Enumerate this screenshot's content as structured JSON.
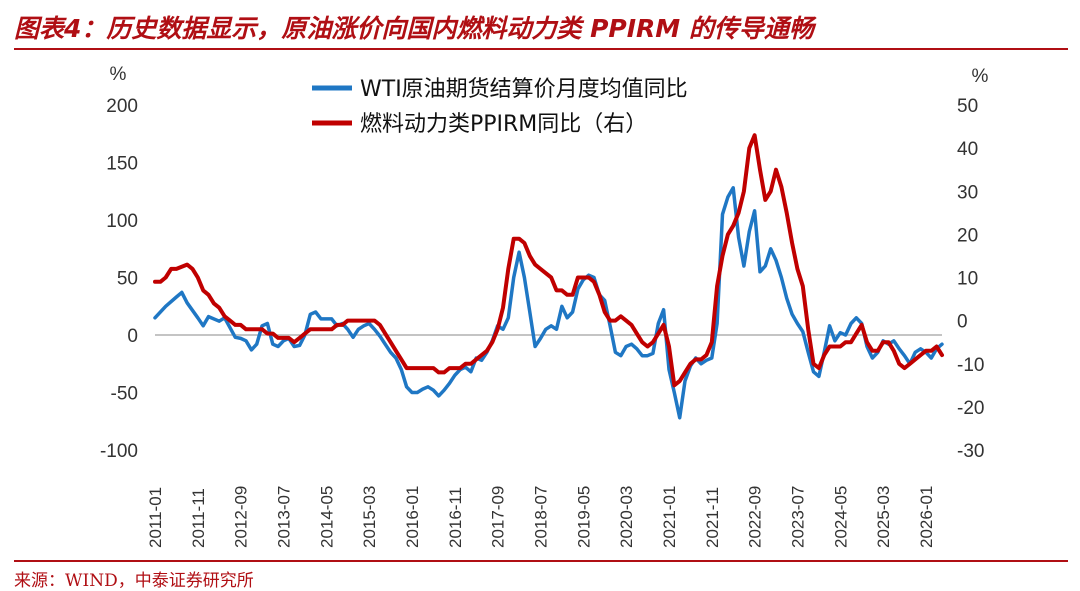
{
  "header": {
    "title": "图表4：历史数据显示，原油涨价向国内燃料动力类 PPIRM 的传导通畅"
  },
  "footer": {
    "source": "来源：WIND，中泰证券研究所"
  },
  "colors": {
    "accent": "#b00f14",
    "series_blue": "#1f77c4",
    "series_red": "#c00000"
  },
  "chart_data": {
    "type": "line",
    "title": "",
    "xlabel": "",
    "ylabel_left": "%",
    "ylabel_right": "%",
    "ylim_left": [
      -100,
      200
    ],
    "ylim_right": [
      -30,
      50
    ],
    "yticks_left": [
      "200",
      "150",
      "100",
      "50",
      "0",
      "-50",
      "-100"
    ],
    "yticks_right": [
      "50",
      "40",
      "30",
      "20",
      "10",
      "0",
      "-10",
      "-20",
      "-30"
    ],
    "x_tick_labels": [
      "2011-01",
      "2011-11",
      "2012-09",
      "2013-07",
      "2014-05",
      "2015-03",
      "2016-01",
      "2016-11",
      "2017-09",
      "2018-07",
      "2019-05",
      "2020-03",
      "2021-01",
      "2021-11",
      "2022-09",
      "2023-07",
      "2024-05",
      "2025-03",
      "2026-01"
    ],
    "legend": [
      "WTI原油期货结算价月度均值同比",
      "燃料动力类PPIRM同比（右）"
    ],
    "series": [
      {
        "name": "WTI原油期货结算价月度均值同比",
        "axis": "left",
        "points": [
          [
            0,
            15
          ],
          [
            2,
            25
          ],
          [
            4,
            33
          ],
          [
            5,
            37
          ],
          [
            6,
            28
          ],
          [
            8,
            15
          ],
          [
            9,
            8
          ],
          [
            10,
            16
          ],
          [
            12,
            12
          ],
          [
            13,
            15
          ],
          [
            15,
            -2
          ],
          [
            16,
            -3
          ],
          [
            17,
            -5
          ],
          [
            18,
            -13
          ],
          [
            19,
            -8
          ],
          [
            20,
            8
          ],
          [
            21,
            10
          ],
          [
            22,
            -8
          ],
          [
            23,
            -10
          ],
          [
            24,
            -5
          ],
          [
            25,
            -3
          ],
          [
            26,
            -10
          ],
          [
            27,
            -9
          ],
          [
            28,
            0
          ],
          [
            29,
            18
          ],
          [
            30,
            20
          ],
          [
            31,
            14
          ],
          [
            33,
            14
          ],
          [
            34,
            8
          ],
          [
            35,
            10
          ],
          [
            36,
            5
          ],
          [
            37,
            -2
          ],
          [
            38,
            5
          ],
          [
            39,
            8
          ],
          [
            40,
            10
          ],
          [
            41,
            5
          ],
          [
            42,
            -1
          ],
          [
            43,
            -8
          ],
          [
            44,
            -15
          ],
          [
            45,
            -20
          ],
          [
            46,
            -30
          ],
          [
            47,
            -45
          ],
          [
            48,
            -50
          ],
          [
            49,
            -50
          ],
          [
            50,
            -47
          ],
          [
            51,
            -45
          ],
          [
            52,
            -48
          ],
          [
            53,
            -53
          ],
          [
            54,
            -48
          ],
          [
            55,
            -42
          ],
          [
            56,
            -35
          ],
          [
            57,
            -30
          ],
          [
            58,
            -28
          ],
          [
            59,
            -32
          ],
          [
            60,
            -20
          ],
          [
            61,
            -22
          ],
          [
            62,
            -15
          ],
          [
            63,
            -5
          ],
          [
            64,
            8
          ],
          [
            65,
            5
          ],
          [
            66,
            15
          ],
          [
            67,
            50
          ],
          [
            68,
            72
          ],
          [
            69,
            50
          ],
          [
            70,
            20
          ],
          [
            71,
            -10
          ],
          [
            72,
            -3
          ],
          [
            73,
            5
          ],
          [
            74,
            8
          ],
          [
            75,
            5
          ],
          [
            76,
            25
          ],
          [
            77,
            15
          ],
          [
            78,
            20
          ],
          [
            79,
            40
          ],
          [
            80,
            48
          ],
          [
            81,
            52
          ],
          [
            82,
            50
          ],
          [
            83,
            35
          ],
          [
            84,
            30
          ],
          [
            85,
            8
          ],
          [
            86,
            -15
          ],
          [
            87,
            -18
          ],
          [
            88,
            -10
          ],
          [
            89,
            -8
          ],
          [
            90,
            -12
          ],
          [
            91,
            -18
          ],
          [
            92,
            -18
          ],
          [
            93,
            -16
          ],
          [
            94,
            10
          ],
          [
            95,
            22
          ],
          [
            96,
            -30
          ],
          [
            97,
            -50
          ],
          [
            98,
            -72
          ],
          [
            99,
            -40
          ],
          [
            100,
            -27
          ],
          [
            101,
            -20
          ],
          [
            102,
            -25
          ],
          [
            103,
            -22
          ],
          [
            104,
            -20
          ],
          [
            105,
            10
          ],
          [
            106,
            105
          ],
          [
            107,
            120
          ],
          [
            108,
            128
          ],
          [
            109,
            85
          ],
          [
            110,
            60
          ],
          [
            111,
            90
          ],
          [
            112,
            108
          ],
          [
            113,
            55
          ],
          [
            114,
            60
          ],
          [
            115,
            75
          ],
          [
            116,
            65
          ],
          [
            117,
            50
          ],
          [
            118,
            32
          ],
          [
            119,
            18
          ],
          [
            120,
            10
          ],
          [
            121,
            3
          ],
          [
            122,
            -15
          ],
          [
            123,
            -32
          ],
          [
            124,
            -36
          ],
          [
            125,
            -15
          ],
          [
            126,
            8
          ],
          [
            127,
            -5
          ],
          [
            128,
            2
          ],
          [
            129,
            0
          ],
          [
            130,
            10
          ],
          [
            131,
            15
          ],
          [
            132,
            10
          ],
          [
            133,
            -10
          ],
          [
            134,
            -20
          ],
          [
            135,
            -15
          ],
          [
            136,
            -5
          ],
          [
            137,
            -8
          ],
          [
            138,
            -5
          ],
          [
            139,
            -12
          ],
          [
            140,
            -18
          ],
          [
            141,
            -25
          ],
          [
            142,
            -15
          ],
          [
            143,
            -12
          ],
          [
            144,
            -15
          ],
          [
            145,
            -20
          ],
          [
            146,
            -12
          ],
          [
            147,
            -8
          ]
        ]
      },
      {
        "name": "燃料动力类PPIRM同比（右）",
        "axis": "right",
        "points": [
          [
            0,
            9
          ],
          [
            1,
            9
          ],
          [
            2,
            10
          ],
          [
            3,
            12
          ],
          [
            4,
            12
          ],
          [
            6,
            13
          ],
          [
            7,
            12
          ],
          [
            8,
            10
          ],
          [
            9,
            7
          ],
          [
            10,
            6
          ],
          [
            11,
            4
          ],
          [
            12,
            3
          ],
          [
            13,
            1
          ],
          [
            14,
            0
          ],
          [
            15,
            -1
          ],
          [
            16,
            -1
          ],
          [
            17,
            -2
          ],
          [
            18,
            -2
          ],
          [
            19,
            -2
          ],
          [
            20,
            -2
          ],
          [
            21,
            -3
          ],
          [
            22,
            -3
          ],
          [
            23,
            -4
          ],
          [
            24,
            -4
          ],
          [
            25,
            -4
          ],
          [
            26,
            -5
          ],
          [
            27,
            -4
          ],
          [
            28,
            -3
          ],
          [
            29,
            -2
          ],
          [
            30,
            -2
          ],
          [
            31,
            -2
          ],
          [
            32,
            -2
          ],
          [
            33,
            -2
          ],
          [
            34,
            -1
          ],
          [
            35,
            -1
          ],
          [
            36,
            0
          ],
          [
            37,
            0
          ],
          [
            38,
            0
          ],
          [
            39,
            0
          ],
          [
            40,
            0
          ],
          [
            41,
            0
          ],
          [
            42,
            -1
          ],
          [
            43,
            -3
          ],
          [
            44,
            -5
          ],
          [
            45,
            -7
          ],
          [
            46,
            -9
          ],
          [
            47,
            -11
          ],
          [
            48,
            -11
          ],
          [
            49,
            -11
          ],
          [
            50,
            -11
          ],
          [
            51,
            -11
          ],
          [
            52,
            -11
          ],
          [
            53,
            -12
          ],
          [
            54,
            -12
          ],
          [
            55,
            -11
          ],
          [
            56,
            -11
          ],
          [
            57,
            -11
          ],
          [
            58,
            -10
          ],
          [
            59,
            -10
          ],
          [
            60,
            -9
          ],
          [
            61,
            -8
          ],
          [
            62,
            -7
          ],
          [
            63,
            -5
          ],
          [
            64,
            -2
          ],
          [
            65,
            3
          ],
          [
            66,
            12
          ],
          [
            67,
            19
          ],
          [
            68,
            19
          ],
          [
            69,
            18
          ],
          [
            70,
            15
          ],
          [
            71,
            13
          ],
          [
            72,
            12
          ],
          [
            73,
            11
          ],
          [
            74,
            10
          ],
          [
            75,
            7
          ],
          [
            76,
            7
          ],
          [
            77,
            6
          ],
          [
            78,
            6
          ],
          [
            79,
            10
          ],
          [
            80,
            10
          ],
          [
            81,
            10
          ],
          [
            82,
            9
          ],
          [
            83,
            6
          ],
          [
            84,
            2
          ],
          [
            85,
            0
          ],
          [
            86,
            0
          ],
          [
            87,
            1
          ],
          [
            88,
            0
          ],
          [
            89,
            -1
          ],
          [
            90,
            -3
          ],
          [
            91,
            -5
          ],
          [
            92,
            -6
          ],
          [
            93,
            -5
          ],
          [
            94,
            -3
          ],
          [
            95,
            -1
          ],
          [
            96,
            -6
          ],
          [
            97,
            -15
          ],
          [
            98,
            -14
          ],
          [
            99,
            -12
          ],
          [
            100,
            -10
          ],
          [
            101,
            -9
          ],
          [
            102,
            -9
          ],
          [
            103,
            -8
          ],
          [
            104,
            -5
          ],
          [
            105,
            8
          ],
          [
            106,
            15
          ],
          [
            107,
            20
          ],
          [
            108,
            22
          ],
          [
            109,
            25
          ],
          [
            110,
            30
          ],
          [
            111,
            40
          ],
          [
            112,
            43
          ],
          [
            113,
            35
          ],
          [
            114,
            28
          ],
          [
            115,
            30
          ],
          [
            116,
            35
          ],
          [
            117,
            31
          ],
          [
            118,
            25
          ],
          [
            119,
            18
          ],
          [
            120,
            12
          ],
          [
            121,
            8
          ],
          [
            122,
            -2
          ],
          [
            123,
            -10
          ],
          [
            124,
            -11
          ],
          [
            125,
            -8
          ],
          [
            126,
            -6
          ],
          [
            127,
            -6
          ],
          [
            128,
            -6
          ],
          [
            129,
            -5
          ],
          [
            130,
            -5
          ],
          [
            131,
            -3
          ],
          [
            132,
            -1
          ],
          [
            133,
            -5
          ],
          [
            134,
            -7
          ],
          [
            135,
            -7
          ],
          [
            136,
            -5
          ],
          [
            137,
            -5
          ],
          [
            138,
            -7
          ],
          [
            139,
            -10
          ],
          [
            140,
            -11
          ],
          [
            141,
            -10
          ],
          [
            142,
            -9
          ],
          [
            143,
            -8
          ],
          [
            144,
            -7
          ],
          [
            145,
            -7
          ],
          [
            146,
            -6
          ],
          [
            147,
            -8
          ]
        ]
      }
    ]
  }
}
